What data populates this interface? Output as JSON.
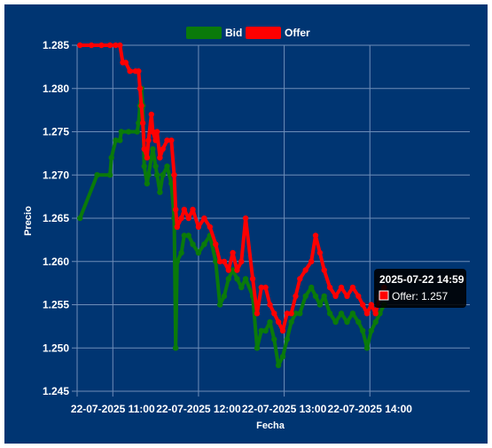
{
  "colors": {
    "background": "#003572",
    "bid": "#0a7a0a",
    "offer": "#ff0000",
    "grid": "#6f8db8"
  },
  "chart_data": {
    "type": "line",
    "xlabel": "Fecha",
    "ylabel": "Precio",
    "ylim": [
      1.245,
      1.285
    ],
    "y_ticks": [
      "1.245",
      "1.250",
      "1.255",
      "1.260",
      "1.265",
      "1.270",
      "1.275",
      "1.280",
      "1.285"
    ],
    "x_range": [
      "2025-07-22 10:35",
      "2025-07-22 15:10"
    ],
    "x_ticks": [
      {
        "t": "2025-07-22 11:00",
        "label": "22-07-2025 11:00"
      },
      {
        "t": "2025-07-22 12:00",
        "label": "22-07-2025 12:00"
      },
      {
        "t": "2025-07-22 13:00",
        "label": "22-07-2025 13:00"
      },
      {
        "t": "2025-07-22 14:00",
        "label": "22-07-2025 14:00"
      }
    ],
    "grid": true,
    "legend_position": "top",
    "series": [
      {
        "name": "Bid",
        "color": "#0a7a0a",
        "points": [
          [
            "2025-07-22 10:37",
            1.265
          ],
          [
            "2025-07-22 10:49",
            1.27
          ],
          [
            "2025-07-22 10:58",
            1.27
          ],
          [
            "2025-07-22 10:59",
            1.272
          ],
          [
            "2025-07-22 11:02",
            1.274
          ],
          [
            "2025-07-22 11:05",
            1.274
          ],
          [
            "2025-07-22 11:06",
            1.275
          ],
          [
            "2025-07-22 11:11",
            1.275
          ],
          [
            "2025-07-22 11:17",
            1.275
          ],
          [
            "2025-07-22 11:18",
            1.276
          ],
          [
            "2025-07-22 11:19",
            1.278
          ],
          [
            "2025-07-22 11:20",
            1.28
          ],
          [
            "2025-07-22 11:21",
            1.278
          ],
          [
            "2025-07-22 11:22",
            1.271
          ],
          [
            "2025-07-22 11:24",
            1.269
          ],
          [
            "2025-07-22 11:25",
            1.27
          ],
          [
            "2025-07-22 11:27",
            1.272
          ],
          [
            "2025-07-22 11:28",
            1.273
          ],
          [
            "2025-07-22 11:30",
            1.271
          ],
          [
            "2025-07-22 11:31",
            1.27
          ],
          [
            "2025-07-22 11:33",
            1.268
          ],
          [
            "2025-07-22 11:35",
            1.27
          ],
          [
            "2025-07-22 11:38",
            1.271
          ],
          [
            "2025-07-22 11:41",
            1.269
          ],
          [
            "2025-07-22 11:43",
            1.265
          ],
          [
            "2025-07-22 11:44",
            1.25
          ],
          [
            "2025-07-22 11:45",
            1.26
          ],
          [
            "2025-07-22 11:48",
            1.261
          ],
          [
            "2025-07-22 11:50",
            1.263
          ],
          [
            "2025-07-22 11:53",
            1.263
          ],
          [
            "2025-07-22 11:56",
            1.262
          ],
          [
            "2025-07-22 12:00",
            1.261
          ],
          [
            "2025-07-22 12:04",
            1.262
          ],
          [
            "2025-07-22 12:08",
            1.263
          ],
          [
            "2025-07-22 12:12",
            1.26
          ],
          [
            "2025-07-22 12:15",
            1.255
          ],
          [
            "2025-07-22 12:18",
            1.256
          ],
          [
            "2025-07-22 12:21",
            1.258
          ],
          [
            "2025-07-22 12:24",
            1.259
          ],
          [
            "2025-07-22 12:27",
            1.258
          ],
          [
            "2025-07-22 12:30",
            1.257
          ],
          [
            "2025-07-22 12:33",
            1.258
          ],
          [
            "2025-07-22 12:38",
            1.256
          ],
          [
            "2025-07-22 12:41",
            1.25
          ],
          [
            "2025-07-22 12:44",
            1.252
          ],
          [
            "2025-07-22 12:47",
            1.252
          ],
          [
            "2025-07-22 12:50",
            1.253
          ],
          [
            "2025-07-22 12:53",
            1.251
          ],
          [
            "2025-07-22 12:56",
            1.248
          ],
          [
            "2025-07-22 12:59",
            1.249
          ],
          [
            "2025-07-22 13:02",
            1.251
          ],
          [
            "2025-07-22 13:05",
            1.253
          ],
          [
            "2025-07-22 13:08",
            1.254
          ],
          [
            "2025-07-22 13:11",
            1.254
          ],
          [
            "2025-07-22 13:15",
            1.256
          ],
          [
            "2025-07-22 13:19",
            1.257
          ],
          [
            "2025-07-22 13:22",
            1.256
          ],
          [
            "2025-07-22 13:25",
            1.255
          ],
          [
            "2025-07-22 13:28",
            1.256
          ],
          [
            "2025-07-22 13:32",
            1.254
          ],
          [
            "2025-07-22 13:36",
            1.253
          ],
          [
            "2025-07-22 13:40",
            1.254
          ],
          [
            "2025-07-22 13:44",
            1.253
          ],
          [
            "2025-07-22 13:48",
            1.254
          ],
          [
            "2025-07-22 13:52",
            1.253
          ],
          [
            "2025-07-22 13:55",
            1.252
          ],
          [
            "2025-07-22 13:58",
            1.25
          ],
          [
            "2025-07-22 14:01",
            1.252
          ],
          [
            "2025-07-22 14:04",
            1.253
          ],
          [
            "2025-07-22 14:07",
            1.254
          ],
          [
            "2025-07-22 14:10",
            1.255
          ]
        ]
      },
      {
        "name": "Offer",
        "color": "#ff0000",
        "points": [
          [
            "2025-07-22 10:37",
            1.285
          ],
          [
            "2025-07-22 10:45",
            1.285
          ],
          [
            "2025-07-22 10:52",
            1.285
          ],
          [
            "2025-07-22 10:58",
            1.285
          ],
          [
            "2025-07-22 11:02",
            1.285
          ],
          [
            "2025-07-22 11:05",
            1.285
          ],
          [
            "2025-07-22 11:07",
            1.283
          ],
          [
            "2025-07-22 11:09",
            1.283
          ],
          [
            "2025-07-22 11:12",
            1.282
          ],
          [
            "2025-07-22 11:16",
            1.282
          ],
          [
            "2025-07-22 11:18",
            1.282
          ],
          [
            "2025-07-22 11:19",
            1.28
          ],
          [
            "2025-07-22 11:20",
            1.278
          ],
          [
            "2025-07-22 11:21",
            1.276
          ],
          [
            "2025-07-22 11:22",
            1.273
          ],
          [
            "2025-07-22 11:24",
            1.272
          ],
          [
            "2025-07-22 11:25",
            1.274
          ],
          [
            "2025-07-22 11:27",
            1.277
          ],
          [
            "2025-07-22 11:28",
            1.275
          ],
          [
            "2025-07-22 11:30",
            1.274
          ],
          [
            "2025-07-22 11:31",
            1.275
          ],
          [
            "2025-07-22 11:33",
            1.272
          ],
          [
            "2025-07-22 11:35",
            1.273
          ],
          [
            "2025-07-22 11:38",
            1.274
          ],
          [
            "2025-07-22 11:41",
            1.274
          ],
          [
            "2025-07-22 11:43",
            1.27
          ],
          [
            "2025-07-22 11:44",
            1.266
          ],
          [
            "2025-07-22 11:45",
            1.264
          ],
          [
            "2025-07-22 11:48",
            1.265
          ],
          [
            "2025-07-22 11:50",
            1.266
          ],
          [
            "2025-07-22 11:53",
            1.265
          ],
          [
            "2025-07-22 11:56",
            1.266
          ],
          [
            "2025-07-22 12:00",
            1.264
          ],
          [
            "2025-07-22 12:04",
            1.265
          ],
          [
            "2025-07-22 12:08",
            1.264
          ],
          [
            "2025-07-22 12:12",
            1.262
          ],
          [
            "2025-07-22 12:15",
            1.26
          ],
          [
            "2025-07-22 12:18",
            1.26
          ],
          [
            "2025-07-22 12:21",
            1.259
          ],
          [
            "2025-07-22 12:24",
            1.261
          ],
          [
            "2025-07-22 12:27",
            1.259
          ],
          [
            "2025-07-22 12:30",
            1.26
          ],
          [
            "2025-07-22 12:33",
            1.265
          ],
          [
            "2025-07-22 12:38",
            1.258
          ],
          [
            "2025-07-22 12:41",
            1.254
          ],
          [
            "2025-07-22 12:44",
            1.257
          ],
          [
            "2025-07-22 12:47",
            1.257
          ],
          [
            "2025-07-22 12:50",
            1.255
          ],
          [
            "2025-07-22 12:53",
            1.254
          ],
          [
            "2025-07-22 12:56",
            1.253
          ],
          [
            "2025-07-22 12:59",
            1.252
          ],
          [
            "2025-07-22 13:02",
            1.254
          ],
          [
            "2025-07-22 13:05",
            1.254
          ],
          [
            "2025-07-22 13:08",
            1.256
          ],
          [
            "2025-07-22 13:11",
            1.258
          ],
          [
            "2025-07-22 13:15",
            1.259
          ],
          [
            "2025-07-22 13:19",
            1.26
          ],
          [
            "2025-07-22 13:22",
            1.263
          ],
          [
            "2025-07-22 13:25",
            1.261
          ],
          [
            "2025-07-22 13:28",
            1.259
          ],
          [
            "2025-07-22 13:32",
            1.257
          ],
          [
            "2025-07-22 13:36",
            1.256
          ],
          [
            "2025-07-22 13:40",
            1.257
          ],
          [
            "2025-07-22 13:44",
            1.256
          ],
          [
            "2025-07-22 13:48",
            1.257
          ],
          [
            "2025-07-22 13:52",
            1.256
          ],
          [
            "2025-07-22 13:55",
            1.255
          ],
          [
            "2025-07-22 13:58",
            1.254
          ],
          [
            "2025-07-22 14:01",
            1.255
          ],
          [
            "2025-07-22 14:04",
            1.254
          ],
          [
            "2025-07-22 14:07",
            1.256
          ],
          [
            "2025-07-22 14:10",
            1.257
          ]
        ]
      }
    ],
    "tooltip": {
      "title": "2025-07-22 14:59",
      "series": "Offer",
      "label": "Offer: 1.257",
      "value": 1.257
    }
  }
}
